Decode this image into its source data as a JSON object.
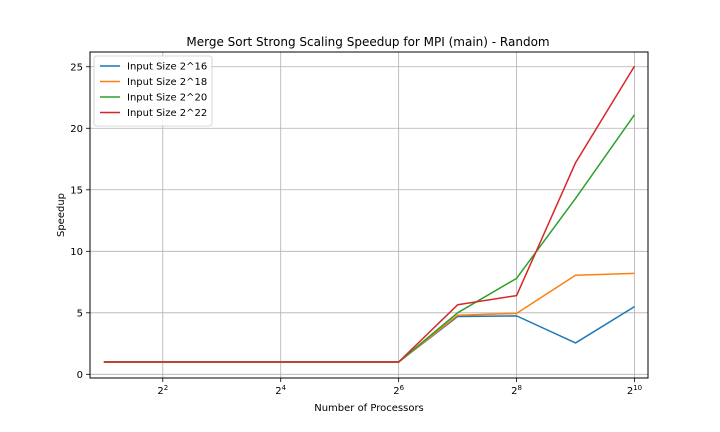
{
  "chart_data": {
    "type": "line",
    "title": "Merge Sort Strong Scaling Speedup for MPI (main) - Random",
    "xlabel": "Number of Processors",
    "ylabel": "Speedup",
    "x_scale": "log2",
    "x": [
      2,
      4,
      8,
      16,
      32,
      64,
      128,
      256,
      512,
      1024
    ],
    "xlim": [
      1.7,
      1200
    ],
    "ylim": [
      -0.3,
      26.2
    ],
    "x_ticks": [
      {
        "value": 4,
        "base": "2",
        "exp": "2"
      },
      {
        "value": 16,
        "base": "2",
        "exp": "4"
      },
      {
        "value": 64,
        "base": "2",
        "exp": "6"
      },
      {
        "value": 256,
        "base": "2",
        "exp": "8"
      },
      {
        "value": 1024,
        "base": "2",
        "exp": "10"
      }
    ],
    "y_ticks": [
      0,
      5,
      10,
      15,
      20,
      25
    ],
    "grid": true,
    "legend_position": "top-left",
    "series": [
      {
        "name": "Input Size 2^16",
        "color": "#1f77b4",
        "values": [
          1.0,
          1.0,
          1.0,
          1.0,
          1.0,
          1.0,
          4.7,
          4.75,
          2.55,
          5.5
        ]
      },
      {
        "name": "Input Size 2^18",
        "color": "#ff7f0e",
        "values": [
          1.0,
          1.0,
          1.0,
          1.0,
          1.0,
          1.0,
          4.8,
          4.95,
          8.05,
          8.2
        ]
      },
      {
        "name": "Input Size 2^20",
        "color": "#2ca02c",
        "values": [
          1.0,
          1.0,
          1.0,
          1.0,
          1.0,
          1.0,
          5.0,
          7.8,
          14.3,
          21.1
        ]
      },
      {
        "name": "Input Size 2^22",
        "color": "#d62728",
        "values": [
          1.0,
          1.0,
          1.0,
          1.0,
          1.0,
          1.0,
          5.65,
          6.4,
          17.2,
          25.05
        ]
      }
    ]
  }
}
